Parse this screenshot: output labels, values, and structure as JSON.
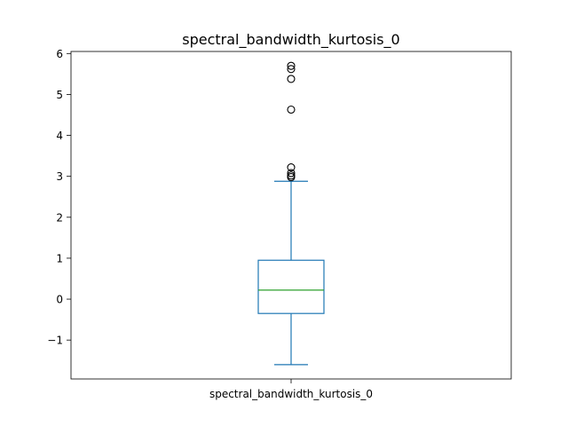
{
  "chart_data": {
    "type": "box",
    "title": "spectral_bandwidth_kurtosis_0",
    "categories": [
      "spectral_bandwidth_kurtosis_0"
    ],
    "xlabel": "",
    "ylabel": "",
    "ylim": [
      -1.95,
      6.05
    ],
    "yticks": [
      -1,
      0,
      1,
      2,
      3,
      4,
      5,
      6
    ],
    "ytick_labels": [
      "−1",
      "0",
      "1",
      "2",
      "3",
      "4",
      "5",
      "6"
    ],
    "grid": false,
    "box": {
      "whisker_low": -1.6,
      "q1": -0.35,
      "median": 0.22,
      "q3": 0.95,
      "whisker_high": 2.88,
      "outliers": [
        2.98,
        3.02,
        3.08,
        3.22,
        4.63,
        5.38,
        5.62,
        5.7
      ]
    },
    "colors": {
      "box": "#1f77b4",
      "median": "#2ca02c",
      "outlier": "#000000"
    }
  }
}
